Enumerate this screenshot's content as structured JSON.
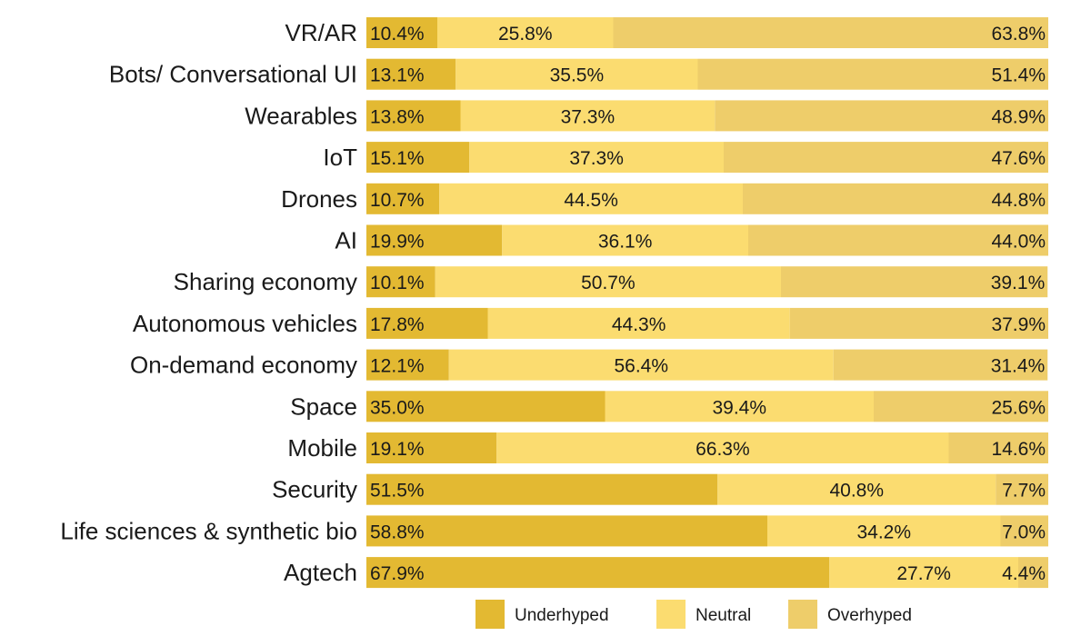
{
  "chart_data": {
    "type": "bar",
    "orientation": "horizontal",
    "stacked": true,
    "percent_stacked": true,
    "categories": [
      "VR/AR",
      "Bots/ Conversational UI",
      "Wearables",
      "IoT",
      "Drones",
      "AI",
      "Sharing economy",
      "Autonomous vehicles",
      "On-demand economy",
      "Space",
      "Mobile",
      "Security",
      "Life sciences & synthetic bio",
      "Agtech"
    ],
    "series": [
      {
        "name": "Underhyped",
        "color": "#e3b932",
        "values": [
          10.4,
          13.1,
          13.8,
          15.1,
          10.7,
          19.9,
          10.1,
          17.8,
          12.1,
          35.0,
          19.1,
          51.5,
          58.8,
          67.9
        ],
        "labels": [
          "10.4%",
          "13.1%",
          "13.8%",
          "15.1%",
          "10.7%",
          "19.9%",
          "10.1%",
          "17.8%",
          "12.1%",
          "35.0%",
          "19.1%",
          "51.5%",
          "58.8%",
          "67.9%"
        ]
      },
      {
        "name": "Neutral",
        "color": "#fbdc70",
        "values": [
          25.8,
          35.5,
          37.3,
          37.3,
          44.5,
          36.1,
          50.7,
          44.3,
          56.4,
          39.4,
          66.3,
          40.8,
          34.2,
          27.7
        ],
        "labels": [
          "25.8%",
          "35.5%",
          "37.3%",
          "37.3%",
          "44.5%",
          "36.1%",
          "50.7%",
          "44.3%",
          "56.4%",
          "39.4%",
          "66.3%",
          "40.8%",
          "34.2%",
          "27.7%"
        ]
      },
      {
        "name": "Overhyped",
        "color": "#eecd6a",
        "values": [
          63.8,
          51.4,
          48.9,
          47.6,
          44.8,
          44.0,
          39.1,
          37.9,
          31.4,
          25.6,
          14.6,
          7.7,
          7.0,
          4.4
        ],
        "labels": [
          "63.8%",
          "51.4%",
          "48.9%",
          "47.6%",
          "44.8%",
          "44.0%",
          "39.1%",
          "37.9%",
          "31.4%",
          "25.6%",
          "14.6%",
          "7.7%",
          "7.0%",
          "4.4%"
        ]
      }
    ],
    "xlim": [
      0,
      100
    ],
    "grid": false,
    "legend_position": "bottom"
  }
}
